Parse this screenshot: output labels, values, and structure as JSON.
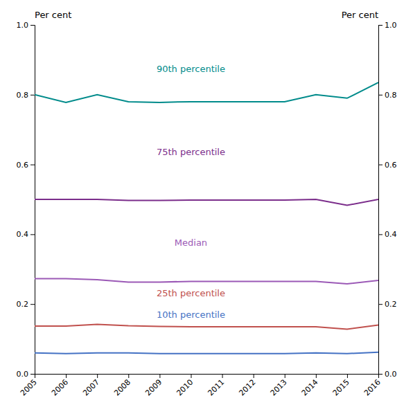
{
  "chart_data": {
    "type": "line",
    "x": [
      2005,
      2006,
      2007,
      2008,
      2009,
      2010,
      2011,
      2012,
      2013,
      2014,
      2015,
      2016
    ],
    "series": [
      {
        "color": "#008B8B",
        "values": [
          0.8,
          0.778,
          0.8,
          0.78,
          0.778,
          0.78,
          0.78,
          0.78,
          0.78,
          0.8,
          0.79,
          0.835
        ]
      },
      {
        "color": "#7B2D8B",
        "values": [
          0.5,
          0.5,
          0.5,
          0.497,
          0.497,
          0.498,
          0.498,
          0.498,
          0.498,
          0.5,
          0.483,
          0.5
        ]
      },
      {
        "color": "#9B59B6",
        "values": [
          0.273,
          0.273,
          0.27,
          0.263,
          0.263,
          0.265,
          0.265,
          0.265,
          0.265,
          0.265,
          0.258,
          0.268
        ]
      },
      {
        "color": "#C0504D",
        "values": [
          0.137,
          0.137,
          0.142,
          0.138,
          0.136,
          0.135,
          0.135,
          0.135,
          0.135,
          0.135,
          0.128,
          0.14
        ]
      },
      {
        "color": "#4472C4",
        "values": [
          0.06,
          0.058,
          0.06,
          0.06,
          0.058,
          0.058,
          0.058,
          0.058,
          0.058,
          0.06,
          0.058,
          0.062
        ]
      }
    ],
    "annotations": [
      {
        "text": "90th percentile",
        "x": 2010.0,
        "y": 0.858,
        "color": "#008B8B"
      },
      {
        "text": "75th percentile",
        "x": 2010.0,
        "y": 0.62,
        "color": "#7B2D8B"
      },
      {
        "text": "Median",
        "x": 2010.0,
        "y": 0.36,
        "color": "#9B59B6"
      },
      {
        "text": "25th percentile",
        "x": 2010.0,
        "y": 0.215,
        "color": "#C0504D"
      },
      {
        "text": "10th percentile",
        "x": 2010.0,
        "y": 0.155,
        "color": "#4472C4"
      }
    ],
    "y_label": "Per cent",
    "y2_label": "Per cent",
    "xlim": [
      2005,
      2016
    ],
    "xticks": [
      2005,
      2006,
      2007,
      2008,
      2009,
      2010,
      2011,
      2012,
      2013,
      2014,
      2015,
      2016
    ],
    "ylim": [
      0.0,
      1.0
    ],
    "yticks": [
      {
        "value": 0.0,
        "label": "0.0"
      },
      0.2,
      0.4,
      0.6,
      0.8,
      {
        "value": 1.0,
        "label": "1.0"
      }
    ],
    "y2lim": [
      0.0,
      1.0
    ],
    "y2ticks": [
      {
        "value": 0.0,
        "label": "0.0"
      },
      0.2,
      0.4,
      0.6,
      0.8,
      {
        "value": 1.0,
        "label": "1.0"
      }
    ],
    "grid": false
  }
}
